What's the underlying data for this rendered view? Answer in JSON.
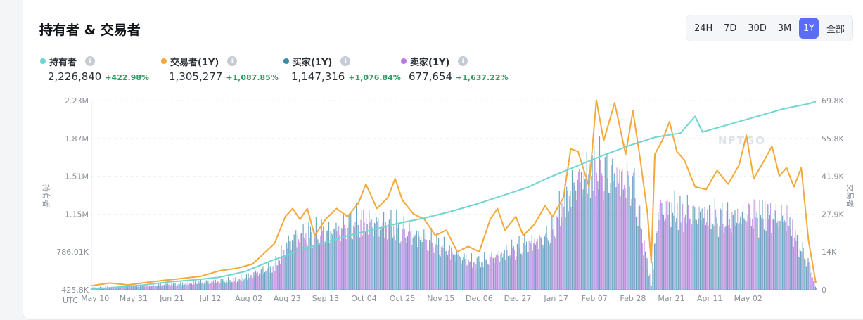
{
  "title": "持有者 & 交易者",
  "ranges": [
    "24H",
    "7D",
    "30D",
    "3M",
    "1Y",
    "全部"
  ],
  "active_range": "1Y",
  "legend": [
    {
      "label": "持有者",
      "value": "2,226,840",
      "change": "+422.98%",
      "color": "#6fd6d2"
    },
    {
      "label": "交易者(1Y)",
      "value": "1,305,277",
      "change": "+1,087.85%",
      "color": "#f4a93a"
    },
    {
      "label": "买家(1Y)",
      "value": "1,147,316",
      "change": "+1,076.84%",
      "color": "#3a8aa8"
    },
    {
      "label": "卖家(1Y)",
      "value": "677,654",
      "change": "+1,637.22%",
      "color": "#b57be0"
    }
  ],
  "info_glyph": "i",
  "watermark": "NFTGO",
  "chart_data": {
    "type": "line",
    "x_tick_labels": [
      "May 10",
      "May 31",
      "Jun 21",
      "Jul 12",
      "Aug 02",
      "Aug 23",
      "Sep 13",
      "Oct 04",
      "Oct 25",
      "Nov 15",
      "Dec 06",
      "Dec 27",
      "Jan 17",
      "Feb 07",
      "Feb 28",
      "Mar 21",
      "Apr 11",
      "May 02"
    ],
    "x_prefix": "UTC",
    "y_left_ticks": [
      "2.23M",
      "1.87M",
      "1.51M",
      "1.15M",
      "786.01K",
      "425.8K"
    ],
    "y_right_ticks": [
      "69.8K",
      "55.8K",
      "41.9K",
      "27.9K",
      "14K",
      "0"
    ],
    "ylabel_left": "持有者",
    "ylabel_right": "交易者",
    "ylim_left": [
      425800,
      2230000
    ],
    "ylim_right": [
      0,
      69800
    ],
    "grid": true,
    "series": [
      {
        "name": "持有者",
        "axis": "left",
        "color": "#6fd6d2",
        "points": [
          [
            0,
            430000
          ],
          [
            14,
            450000
          ],
          [
            28,
            470000
          ],
          [
            42,
            500000
          ],
          [
            56,
            520000
          ],
          [
            70,
            545000
          ],
          [
            84,
            600000
          ],
          [
            98,
            700000
          ],
          [
            112,
            790000
          ],
          [
            126,
            870000
          ],
          [
            140,
            940000
          ],
          [
            154,
            1000000
          ],
          [
            168,
            1060000
          ],
          [
            182,
            1110000
          ],
          [
            196,
            1170000
          ],
          [
            210,
            1240000
          ],
          [
            224,
            1320000
          ],
          [
            238,
            1400000
          ],
          [
            252,
            1510000
          ],
          [
            266,
            1610000
          ],
          [
            280,
            1710000
          ],
          [
            294,
            1800000
          ],
          [
            308,
            1880000
          ],
          [
            322,
            1920000
          ],
          [
            330,
            2080000
          ],
          [
            334,
            1930000
          ],
          [
            350,
            2010000
          ],
          [
            364,
            2080000
          ],
          [
            378,
            2150000
          ],
          [
            392,
            2200000
          ],
          [
            396,
            2220000
          ]
        ]
      },
      {
        "name": "交易者(1Y)",
        "axis": "right",
        "color": "#f4a93a",
        "points": [
          [
            0,
            1500
          ],
          [
            10,
            2500
          ],
          [
            20,
            1800
          ],
          [
            30,
            2700
          ],
          [
            40,
            3500
          ],
          [
            50,
            4200
          ],
          [
            60,
            5000
          ],
          [
            70,
            7000
          ],
          [
            80,
            8000
          ],
          [
            88,
            9500
          ],
          [
            92,
            12000
          ],
          [
            100,
            17000
          ],
          [
            106,
            27000
          ],
          [
            110,
            30000
          ],
          [
            114,
            26000
          ],
          [
            118,
            30000
          ],
          [
            122,
            20000
          ],
          [
            128,
            26000
          ],
          [
            134,
            30000
          ],
          [
            140,
            27000
          ],
          [
            146,
            32000
          ],
          [
            150,
            39000
          ],
          [
            156,
            30000
          ],
          [
            162,
            34000
          ],
          [
            166,
            41000
          ],
          [
            170,
            33000
          ],
          [
            176,
            28000
          ],
          [
            182,
            26000
          ],
          [
            188,
            20000
          ],
          [
            194,
            22000
          ],
          [
            200,
            14000
          ],
          [
            206,
            16000
          ],
          [
            212,
            14000
          ],
          [
            218,
            26000
          ],
          [
            222,
            30000
          ],
          [
            226,
            22000
          ],
          [
            232,
            27000
          ],
          [
            236,
            20000
          ],
          [
            242,
            24000
          ],
          [
            248,
            31000
          ],
          [
            252,
            27000
          ],
          [
            258,
            34000
          ],
          [
            262,
            52000
          ],
          [
            266,
            51000
          ],
          [
            272,
            38000
          ],
          [
            276,
            70000
          ],
          [
            280,
            55000
          ],
          [
            286,
            69000
          ],
          [
            292,
            50000
          ],
          [
            296,
            66000
          ],
          [
            300,
            48000
          ],
          [
            304,
            28000
          ],
          [
            306,
            10000
          ],
          [
            308,
            50000
          ],
          [
            312,
            55000
          ],
          [
            316,
            62000
          ],
          [
            320,
            51000
          ],
          [
            324,
            48000
          ],
          [
            330,
            38000
          ],
          [
            336,
            37000
          ],
          [
            342,
            44000
          ],
          [
            348,
            39000
          ],
          [
            354,
            46000
          ],
          [
            358,
            57000
          ],
          [
            362,
            41000
          ],
          [
            368,
            48000
          ],
          [
            372,
            53000
          ],
          [
            376,
            42000
          ],
          [
            380,
            45000
          ],
          [
            384,
            38000
          ],
          [
            388,
            45000
          ],
          [
            392,
            18000
          ],
          [
            396,
            2500
          ]
        ]
      },
      {
        "name": "买家(1Y)",
        "axis": "right",
        "color": "#3a8aa8",
        "points": [
          [
            0,
            800
          ],
          [
            40,
            2000
          ],
          [
            80,
            4000
          ],
          [
            100,
            9000
          ],
          [
            110,
            20000
          ],
          [
            130,
            22000
          ],
          [
            150,
            26000
          ],
          [
            170,
            23000
          ],
          [
            190,
            17000
          ],
          [
            210,
            10000
          ],
          [
            230,
            15000
          ],
          [
            250,
            20000
          ],
          [
            264,
            40000
          ],
          [
            276,
            45000
          ],
          [
            286,
            42000
          ],
          [
            296,
            40000
          ],
          [
            306,
            2000
          ],
          [
            310,
            30000
          ],
          [
            330,
            28000
          ],
          [
            350,
            26000
          ],
          [
            362,
            27000
          ],
          [
            380,
            25000
          ],
          [
            392,
            10000
          ],
          [
            396,
            1000
          ]
        ]
      },
      {
        "name": "卖家(1Y)",
        "axis": "right",
        "color": "#b57be0",
        "points": [
          [
            0,
            600
          ],
          [
            40,
            1500
          ],
          [
            80,
            3000
          ],
          [
            100,
            8000
          ],
          [
            110,
            18000
          ],
          [
            130,
            20000
          ],
          [
            150,
            24000
          ],
          [
            170,
            21000
          ],
          [
            190,
            15000
          ],
          [
            210,
            9000
          ],
          [
            230,
            14000
          ],
          [
            250,
            19000
          ],
          [
            264,
            38000
          ],
          [
            276,
            43000
          ],
          [
            286,
            40000
          ],
          [
            296,
            38000
          ],
          [
            306,
            1500
          ],
          [
            310,
            29000
          ],
          [
            330,
            27000
          ],
          [
            350,
            25000
          ],
          [
            362,
            29000
          ],
          [
            380,
            27000
          ],
          [
            392,
            9000
          ],
          [
            396,
            800
          ]
        ]
      }
    ]
  }
}
